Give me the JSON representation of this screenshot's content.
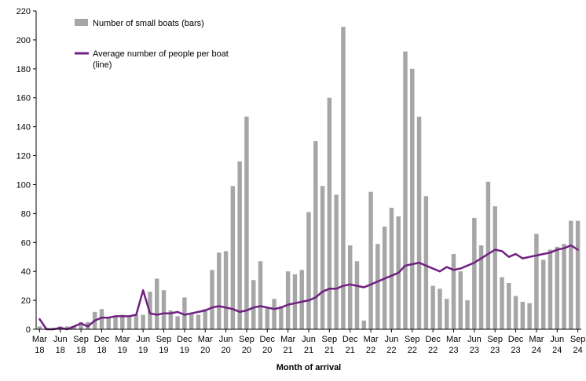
{
  "legend": {
    "bars_label": "Number of small boats (bars)",
    "line_label_line1": "Average number of people per boat",
    "line_label_line2": "(line)"
  },
  "chart_data": {
    "type": "bar",
    "title": "",
    "xlabel": "Month of arrival",
    "ylabel": "",
    "ylim": [
      0,
      220
    ],
    "y_tick_step": 20,
    "grid": false,
    "legend_position": "top-left",
    "categories": [
      "Mar 18",
      "Apr 18",
      "May 18",
      "Jun 18",
      "Jul 18",
      "Aug 18",
      "Sep 18",
      "Oct 18",
      "Nov 18",
      "Dec 18",
      "Jan 19",
      "Feb 19",
      "Mar 19",
      "Apr 19",
      "May 19",
      "Jun 19",
      "Jul 19",
      "Aug 19",
      "Sep 19",
      "Oct 19",
      "Nov 19",
      "Dec 19",
      "Jan 20",
      "Feb 20",
      "Mar 20",
      "Apr 20",
      "May 20",
      "Jun 20",
      "Jul 20",
      "Aug 20",
      "Sep 20",
      "Oct 20",
      "Nov 20",
      "Dec 20",
      "Jan 21",
      "Feb 21",
      "Mar 21",
      "Apr 21",
      "May 21",
      "Jun 21",
      "Jul 21",
      "Aug 21",
      "Sep 21",
      "Oct 21",
      "Nov 21",
      "Dec 21",
      "Jan 22",
      "Feb 22",
      "Mar 22",
      "Apr 22",
      "May 22",
      "Jun 22",
      "Jul 22",
      "Aug 22",
      "Sep 22",
      "Oct 22",
      "Nov 22",
      "Dec 22",
      "Jan 23",
      "Feb 23",
      "Mar 23",
      "Apr 23",
      "May 23",
      "Jun 23",
      "Jul 23",
      "Aug 23",
      "Sep 23",
      "Oct 23",
      "Nov 23",
      "Dec 23",
      "Jan 24",
      "Feb 24",
      "Mar 24",
      "Apr 24",
      "May 24",
      "Jun 24",
      "Jul 24",
      "Aug 24",
      "Sep 24"
    ],
    "x_tick_every": 3,
    "series": [
      {
        "name": "Number of small boats (bars)",
        "type": "bar",
        "color": "#a6a6a6",
        "values": [
          2,
          1,
          1,
          2,
          2,
          2,
          5,
          5,
          12,
          14,
          8,
          9,
          10,
          9,
          10,
          10,
          26,
          35,
          27,
          13,
          9,
          22,
          11,
          10,
          14,
          41,
          53,
          54,
          99,
          116,
          147,
          34,
          47,
          15,
          21,
          16,
          40,
          38,
          41,
          81,
          130,
          99,
          160,
          93,
          209,
          58,
          47,
          6,
          95,
          59,
          71,
          84,
          78,
          192,
          180,
          147,
          92,
          30,
          28,
          21,
          52,
          40,
          20,
          77,
          58,
          102,
          85,
          36,
          32,
          23,
          19,
          18,
          66,
          48,
          55,
          57,
          59,
          75,
          75
        ]
      },
      {
        "name": "Average number of people per boat (line)",
        "type": "line",
        "color": "#702082",
        "values": [
          7,
          0,
          0,
          1,
          0,
          2,
          4,
          2,
          6,
          8,
          8,
          9,
          9,
          9,
          10,
          27,
          11,
          10,
          11,
          11,
          12,
          10,
          11,
          12,
          13,
          15,
          16,
          15,
          14,
          12,
          13,
          15,
          16,
          15,
          14,
          15,
          17,
          18,
          19,
          20,
          22,
          26,
          28,
          28,
          30,
          31,
          30,
          29,
          31,
          33,
          35,
          37,
          39,
          44,
          45,
          46,
          44,
          42,
          40,
          43,
          41,
          42,
          44,
          46,
          49,
          52,
          55,
          54,
          50,
          52,
          49,
          50,
          51,
          52,
          53,
          55,
          56,
          58,
          55
        ]
      }
    ]
  }
}
